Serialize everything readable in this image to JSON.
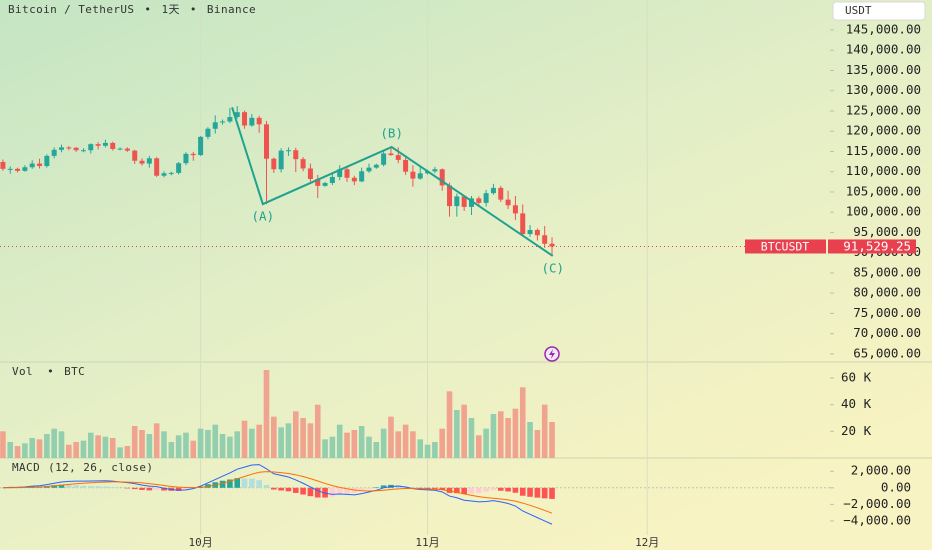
{
  "chart_data": [
    {
      "type": "candlestick",
      "symbol": "Bitcoin / TetherUS",
      "interval": "1天",
      "exchange": "Binance",
      "currency": "USDT",
      "up_color": "#26a69a",
      "down_color": "#ef5350",
      "xlim": [
        -0.4,
        112.97
      ],
      "ylim": [
        63000,
        152400
      ],
      "yticks": [
        {
          "value": 65000,
          "label": "65,000.00"
        },
        {
          "value": 70000,
          "label": "70,000.00"
        },
        {
          "value": 75000,
          "label": "75,000.00"
        },
        {
          "value": 80000,
          "label": "80,000.00"
        },
        {
          "value": 85000,
          "label": "85,000.00"
        },
        {
          "value": 90000,
          "label": "90,000.00"
        },
        {
          "value": 95000,
          "label": "95,000.00"
        },
        {
          "value": 100000,
          "label": "100,000.00"
        },
        {
          "value": 105000,
          "label": "105,000.00"
        },
        {
          "value": 110000,
          "label": "110,000.00"
        },
        {
          "value": 115000,
          "label": "115,000.00"
        },
        {
          "value": 120000,
          "label": "120,000.00"
        },
        {
          "value": 125000,
          "label": "125,000.00"
        },
        {
          "value": 130000,
          "label": "130,000.00"
        },
        {
          "value": 135000,
          "label": "135,000.00"
        },
        {
          "value": 140000,
          "label": "140,000.00"
        },
        {
          "value": 145000,
          "label": "145,000.00"
        }
      ],
      "open": [
        112400,
        110700,
        110700,
        110200,
        111100,
        112000,
        111400,
        113900,
        115400,
        116000,
        115900,
        115300,
        115300,
        116800,
        116400,
        117100,
        115600,
        115700,
        115200,
        112700,
        112000,
        113300,
        109000,
        109600,
        109700,
        112100,
        114400,
        114100,
        118600,
        120600,
        122200,
        122400,
        123500,
        124700,
        121400,
        123300,
        121700,
        113200,
        110600,
        115200,
        115300,
        113100,
        110800,
        108200,
        106500,
        107200,
        108700,
        110600,
        108500,
        107600,
        110100,
        111000,
        111700,
        114500,
        114100,
        112900,
        110000,
        108300,
        109600,
        110100,
        110600,
        106600,
        101500,
        103900,
        101300,
        103400,
        102300,
        104700,
        106000,
        103100,
        101700,
        99700,
        94600,
        95600,
        94300,
        92200
      ],
      "high": [
        113000,
        111300,
        111000,
        111600,
        112800,
        113200,
        114300,
        116000,
        116700,
        116300,
        116100,
        115800,
        117000,
        117300,
        117900,
        117400,
        116000,
        116000,
        115400,
        113300,
        113900,
        113600,
        110100,
        110000,
        112400,
        114800,
        114900,
        118800,
        121000,
        123900,
        122900,
        125700,
        126200,
        125100,
        124200,
        123800,
        122500,
        113500,
        115800,
        116000,
        115900,
        113600,
        112000,
        109200,
        107500,
        109400,
        111600,
        111000,
        109000,
        111000,
        112000,
        112000,
        115000,
        116200,
        116000,
        113600,
        111600,
        111200,
        110500,
        111200,
        110800,
        107300,
        104600,
        104200,
        104000,
        103900,
        105500,
        107000,
        106500,
        105300,
        104000,
        101900,
        96800,
        96000,
        96600,
        93800
      ],
      "low": [
        110200,
        109500,
        109800,
        110000,
        110700,
        110800,
        111000,
        113300,
        114800,
        115300,
        114900,
        114800,
        114500,
        115500,
        116000,
        115200,
        115300,
        114900,
        111900,
        111500,
        111000,
        108700,
        108600,
        109100,
        109300,
        111600,
        112700,
        113900,
        118000,
        119400,
        121600,
        122000,
        123100,
        120600,
        121100,
        119600,
        102000,
        109700,
        109800,
        113900,
        109900,
        110100,
        107500,
        103500,
        106300,
        106700,
        107900,
        107500,
        106700,
        107400,
        109700,
        110700,
        111300,
        113900,
        112100,
        109200,
        106300,
        108000,
        109300,
        109600,
        105300,
        98900,
        98900,
        100300,
        99300,
        101500,
        101400,
        104300,
        102500,
        100800,
        98100,
        94000,
        93900,
        93000,
        91200,
        89300
      ],
      "close": [
        110700,
        110700,
        110200,
        111100,
        112000,
        111400,
        113900,
        115400,
        116000,
        115900,
        115300,
        115300,
        116800,
        116400,
        117100,
        115600,
        115700,
        115200,
        112700,
        112000,
        113300,
        109000,
        109600,
        109700,
        112100,
        114400,
        114100,
        118600,
        120600,
        122200,
        122400,
        123500,
        124700,
        121400,
        123300,
        121700,
        113200,
        110600,
        115200,
        115300,
        113100,
        110800,
        108200,
        106500,
        107200,
        108700,
        110600,
        108500,
        107600,
        110100,
        111000,
        111700,
        114500,
        114100,
        112900,
        110000,
        108300,
        109600,
        110100,
        110600,
        106600,
        101500,
        103900,
        101300,
        103400,
        102300,
        104700,
        106000,
        103100,
        101700,
        99700,
        94600,
        95600,
        94300,
        92200,
        91529.25
      ],
      "price_tag": {
        "symbol": "BTCUSDT",
        "value": 91529.25,
        "label": "91,529.25",
        "color": "#e8404f"
      },
      "wave": {
        "color": "#1fa28f",
        "x": [
          31.3,
          35.5,
          53.1,
          75.1
        ],
        "y": [
          125900,
          102000,
          116100,
          89200
        ],
        "labels": [
          null,
          "(A)",
          "(B)",
          "(C)"
        ]
      }
    },
    {
      "type": "bar",
      "title": "Vol",
      "unit": "BTC",
      "up_color": "#93cfae",
      "down_color": "#f0a38f",
      "ylim": [
        0,
        72000
      ],
      "yticks": [
        {
          "value": 20000,
          "label": "20 K"
        },
        {
          "value": 40000,
          "label": "40 K"
        },
        {
          "value": 60000,
          "label": "60 K"
        }
      ],
      "values": [
        20000,
        12000,
        9000,
        11000,
        15000,
        14000,
        18000,
        22000,
        20000,
        10000,
        12000,
        13000,
        19000,
        17000,
        16000,
        15000,
        8000,
        9000,
        24000,
        21000,
        18000,
        26000,
        20000,
        12000,
        17000,
        19000,
        13000,
        22000,
        21000,
        25000,
        18000,
        16000,
        20000,
        28000,
        22000,
        25000,
        66000,
        31000,
        23000,
        26000,
        35000,
        30000,
        26000,
        40000,
        14000,
        16000,
        25000,
        19000,
        21000,
        24000,
        16000,
        12000,
        22000,
        31000,
        20000,
        25000,
        20000,
        14000,
        10000,
        12000,
        22000,
        50000,
        36000,
        40000,
        30000,
        17000,
        22000,
        33000,
        35000,
        30000,
        37000,
        53000,
        27000,
        21000,
        40000,
        27000
      ]
    },
    {
      "type": "macd",
      "title": "MACD",
      "params": "(12, 26, close)",
      "ylim": [
        -5700,
        3600
      ],
      "yticks": [
        {
          "value": 2000,
          "label": "2,000.00"
        },
        {
          "value": 0,
          "label": "0.00"
        },
        {
          "value": -2000,
          "label": "−2,000.00"
        },
        {
          "value": -4000,
          "label": "−4,000.00"
        }
      ],
      "xticks": [
        {
          "value": 27,
          "label": "10月"
        },
        {
          "value": 58,
          "label": "11月"
        },
        {
          "value": 88,
          "label": "12月"
        }
      ],
      "macd": {
        "color": "#2962ff",
        "values": [
          0,
          50,
          60,
          100,
          200,
          250,
          380,
          550,
          700,
          780,
          800,
          800,
          820,
          830,
          850,
          800,
          700,
          620,
          500,
          330,
          200,
          150,
          -50,
          -200,
          -300,
          -250,
          -100,
          200,
          600,
          1000,
          1400,
          1800,
          2250,
          2500,
          2750,
          2800,
          2300,
          1700,
          1500,
          1300,
          950,
          550,
          100,
          -350,
          -650,
          -800,
          -750,
          -800,
          -850,
          -700,
          -500,
          -300,
          0,
          150,
          200,
          100,
          -100,
          -200,
          -250,
          -300,
          -500,
          -1000,
          -1200,
          -1500,
          -1600,
          -1700,
          -1650,
          -1550,
          -1700,
          -1900,
          -2200,
          -2800,
          -3200,
          -3600,
          -4000,
          -4400
        ]
      },
      "signal": {
        "color": "#ff6d00",
        "values": [
          0,
          10,
          20,
          36,
          69,
          105,
          160,
          238,
          330,
          420,
          496,
          557,
          610,
          654,
          693,
          714,
          711,
          693,
          654,
          589,
          511,
          399,
          279,
          163,
          80,
          44,
          15,
          52,
          162,
          330,
          544,
          795,
          1086,
          1369,
          1645,
          1876,
          1961,
          1909,
          1827,
          1722,
          1568,
          1364,
          1111,
          819,
          525,
          260,
          58,
          -114,
          -261,
          -349,
          -379,
          -363,
          -290,
          -202,
          -122,
          -78,
          -82,
          -106,
          -135,
          -168,
          -234,
          -387,
          -550,
          -740,
          -912,
          -1070,
          -1186,
          -1259,
          -1347,
          -1458,
          -1606,
          -1845,
          -2116,
          -2413,
          -2730,
          -3064
        ]
      },
      "histogram": {
        "colors": [
          "#26a69a",
          "#b2dfdb",
          "#ffcdd2",
          "#ff5252"
        ],
        "values": [
          0,
          40,
          40,
          64,
          131,
          145,
          220,
          312,
          370,
          360,
          304,
          243,
          210,
          176,
          157,
          86,
          -11,
          -73,
          -154,
          -259,
          -311,
          -249,
          -329,
          -363,
          -380,
          -294,
          -115,
          148,
          438,
          670,
          856,
          1005,
          1164,
          1131,
          1105,
          924,
          339,
          -209,
          -327,
          -422,
          -618,
          -814,
          -1011,
          -1169,
          -1175,
          -1060,
          -808,
          -686,
          -589,
          -351,
          -121,
          63,
          290,
          352,
          322,
          178,
          -18,
          -94,
          -115,
          -132,
          -266,
          -613,
          -650,
          -760,
          -688,
          -630,
          -464,
          -291,
          -353,
          -442,
          -594,
          -955,
          -1084,
          -1187,
          -1270,
          -1336
        ]
      }
    }
  ]
}
